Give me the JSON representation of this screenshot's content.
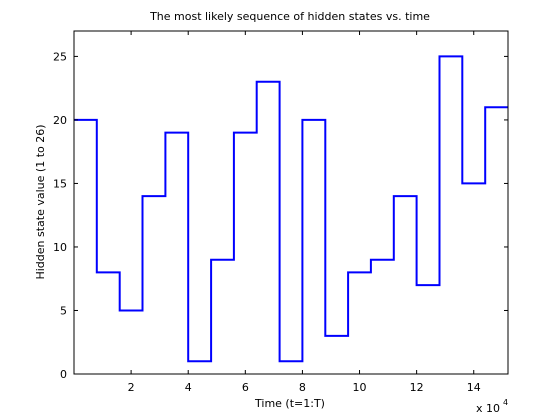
{
  "chart_data": {
    "type": "line",
    "title": "The most likely sequence of hidden states vs. time",
    "xlabel": "Time (t=1:T)",
    "ylabel": "Hidden state value (1 to 26)",
    "x_multiplier_label": "x 10",
    "x_multiplier_exp": "4",
    "xlim": [
      0,
      15.2
    ],
    "ylim": [
      0,
      27
    ],
    "x_ticks": [
      2,
      4,
      6,
      8,
      10,
      12,
      14
    ],
    "x_tick_labels": [
      "2",
      "4",
      "6",
      "8",
      "10",
      "12",
      "14"
    ],
    "y_ticks": [
      0,
      5,
      10,
      15,
      20,
      25
    ],
    "y_tick_labels": [
      "0",
      "5",
      "10",
      "15",
      "20",
      "25"
    ],
    "grid": false,
    "series": [
      {
        "color": "#0000ff",
        "segments": [
          {
            "x_start": 0.0,
            "x_end": 0.8,
            "y": 20
          },
          {
            "x_start": 0.8,
            "x_end": 1.6,
            "y": 8
          },
          {
            "x_start": 1.6,
            "x_end": 2.4,
            "y": 5
          },
          {
            "x_start": 2.4,
            "x_end": 3.2,
            "y": 14
          },
          {
            "x_start": 3.2,
            "x_end": 4.0,
            "y": 19
          },
          {
            "x_start": 4.0,
            "x_end": 4.8,
            "y": 1
          },
          {
            "x_start": 4.8,
            "x_end": 5.6,
            "y": 9
          },
          {
            "x_start": 5.6,
            "x_end": 6.4,
            "y": 19
          },
          {
            "x_start": 6.4,
            "x_end": 7.2,
            "y": 23
          },
          {
            "x_start": 7.2,
            "x_end": 8.0,
            "y": 1
          },
          {
            "x_start": 8.0,
            "x_end": 8.8,
            "y": 20
          },
          {
            "x_start": 8.8,
            "x_end": 9.6,
            "y": 3
          },
          {
            "x_start": 9.6,
            "x_end": 10.4,
            "y": 8
          },
          {
            "x_start": 10.4,
            "x_end": 11.2,
            "y": 9
          },
          {
            "x_start": 11.2,
            "x_end": 12.0,
            "y": 14
          },
          {
            "x_start": 12.0,
            "x_end": 12.8,
            "y": 7
          },
          {
            "x_start": 12.8,
            "x_end": 13.6,
            "y": 25
          },
          {
            "x_start": 13.6,
            "x_end": 14.4,
            "y": 15
          },
          {
            "x_start": 14.4,
            "x_end": 15.2,
            "y": 21
          }
        ]
      }
    ]
  }
}
